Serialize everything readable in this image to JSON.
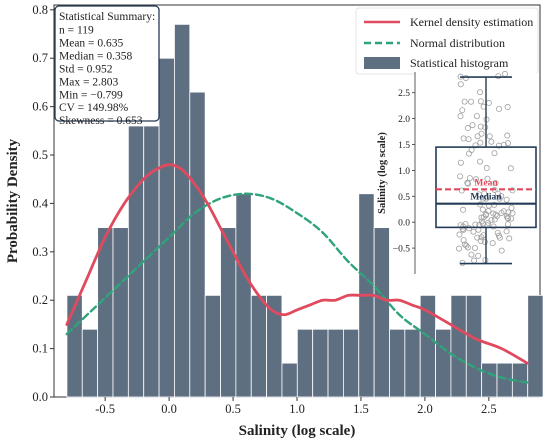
{
  "chart_data": {
    "type": "bar",
    "title": "",
    "xlabel": "Salinity (log scale)",
    "ylabel": "Probability Density",
    "xlim": [
      -0.9,
      2.9
    ],
    "ylim": [
      0,
      0.81
    ],
    "x_ticks": [
      "-0.5",
      "0.0",
      "0.5",
      "1.0",
      "1.5",
      "2.0",
      "2.5"
    ],
    "x_tick_values": [
      -0.5,
      0.0,
      0.5,
      1.0,
      1.5,
      2.0,
      2.5
    ],
    "y_ticks": [
      "0.0",
      "0.1",
      "0.2",
      "0.3",
      "0.4",
      "0.5",
      "0.6",
      "0.7",
      "0.8"
    ],
    "y_tick_values": [
      0.0,
      0.1,
      0.2,
      0.3,
      0.4,
      0.5,
      0.6,
      0.7,
      0.8
    ],
    "grid": false,
    "legend_position": "top-right",
    "histogram": {
      "name": "Statistical histogram",
      "bin_start": -0.799,
      "bin_width": 0.1201,
      "values": [
        0.21,
        0.14,
        0.35,
        0.35,
        0.56,
        0.56,
        0.7,
        0.77,
        0.63,
        0.21,
        0.35,
        0.42,
        0.21,
        0.21,
        0.07,
        0.14,
        0.14,
        0.14,
        0.14,
        0.42,
        0.35,
        0.14,
        0.14,
        0.21,
        0.14,
        0.21,
        0.21,
        0.07,
        0.07,
        0.07,
        0.21
      ],
      "color": "#5f6f82"
    },
    "series": [
      {
        "name": "Kernel density estimation",
        "style": "solid",
        "color": "#e04a5f",
        "x": [
          -0.8,
          -0.65,
          -0.5,
          -0.35,
          -0.2,
          -0.1,
          0.0,
          0.1,
          0.2,
          0.3,
          0.4,
          0.5,
          0.6,
          0.7,
          0.8,
          0.9,
          1.0,
          1.1,
          1.2,
          1.3,
          1.4,
          1.5,
          1.6,
          1.7,
          1.8,
          1.9,
          2.0,
          2.2,
          2.4,
          2.6,
          2.8
        ],
        "y": [
          0.15,
          0.24,
          0.33,
          0.4,
          0.45,
          0.47,
          0.48,
          0.47,
          0.44,
          0.4,
          0.35,
          0.3,
          0.25,
          0.21,
          0.18,
          0.17,
          0.18,
          0.19,
          0.2,
          0.2,
          0.21,
          0.21,
          0.21,
          0.2,
          0.2,
          0.19,
          0.18,
          0.15,
          0.12,
          0.1,
          0.07
        ]
      },
      {
        "name": "Normal distribution",
        "style": "dashed",
        "color": "#2fa37a",
        "x": [
          -0.8,
          -0.6,
          -0.4,
          -0.2,
          0.0,
          0.2,
          0.4,
          0.6,
          0.8,
          1.0,
          1.2,
          1.4,
          1.6,
          1.8,
          2.0,
          2.2,
          2.4,
          2.6,
          2.8
        ],
        "y": [
          0.13,
          0.18,
          0.23,
          0.28,
          0.33,
          0.38,
          0.41,
          0.42,
          0.41,
          0.38,
          0.34,
          0.28,
          0.23,
          0.17,
          0.13,
          0.09,
          0.06,
          0.04,
          0.03
        ]
      }
    ],
    "summary": {
      "title": "Statistical Summary:",
      "lines": [
        "n = 119",
        "Mean = 0.635",
        "Median = 0.358",
        "Std = 0.952",
        "Max = 2.803",
        "Min = −0.799",
        "CV = 149.98%",
        "Skewness = 0.653"
      ]
    },
    "inset": {
      "type": "boxplot",
      "ylabel": "Salinity (log scale)",
      "ylim": [
        -1.0,
        2.9
      ],
      "y_ticks": [
        "−0.5",
        "0.0",
        "0.5",
        "1.0",
        "1.5",
        "2.0",
        "2.5"
      ],
      "y_tick_values": [
        -0.5,
        0.0,
        0.5,
        1.0,
        1.5,
        2.0,
        2.5
      ],
      "min": -0.799,
      "q1": -0.1,
      "median": 0.358,
      "mean": 0.635,
      "q3": 1.45,
      "max": 2.803,
      "mean_label": "Mean",
      "median_label": "Median",
      "mean_color": "#e04a5f",
      "median_color": "#243b58",
      "box_color": "#243b58"
    }
  }
}
